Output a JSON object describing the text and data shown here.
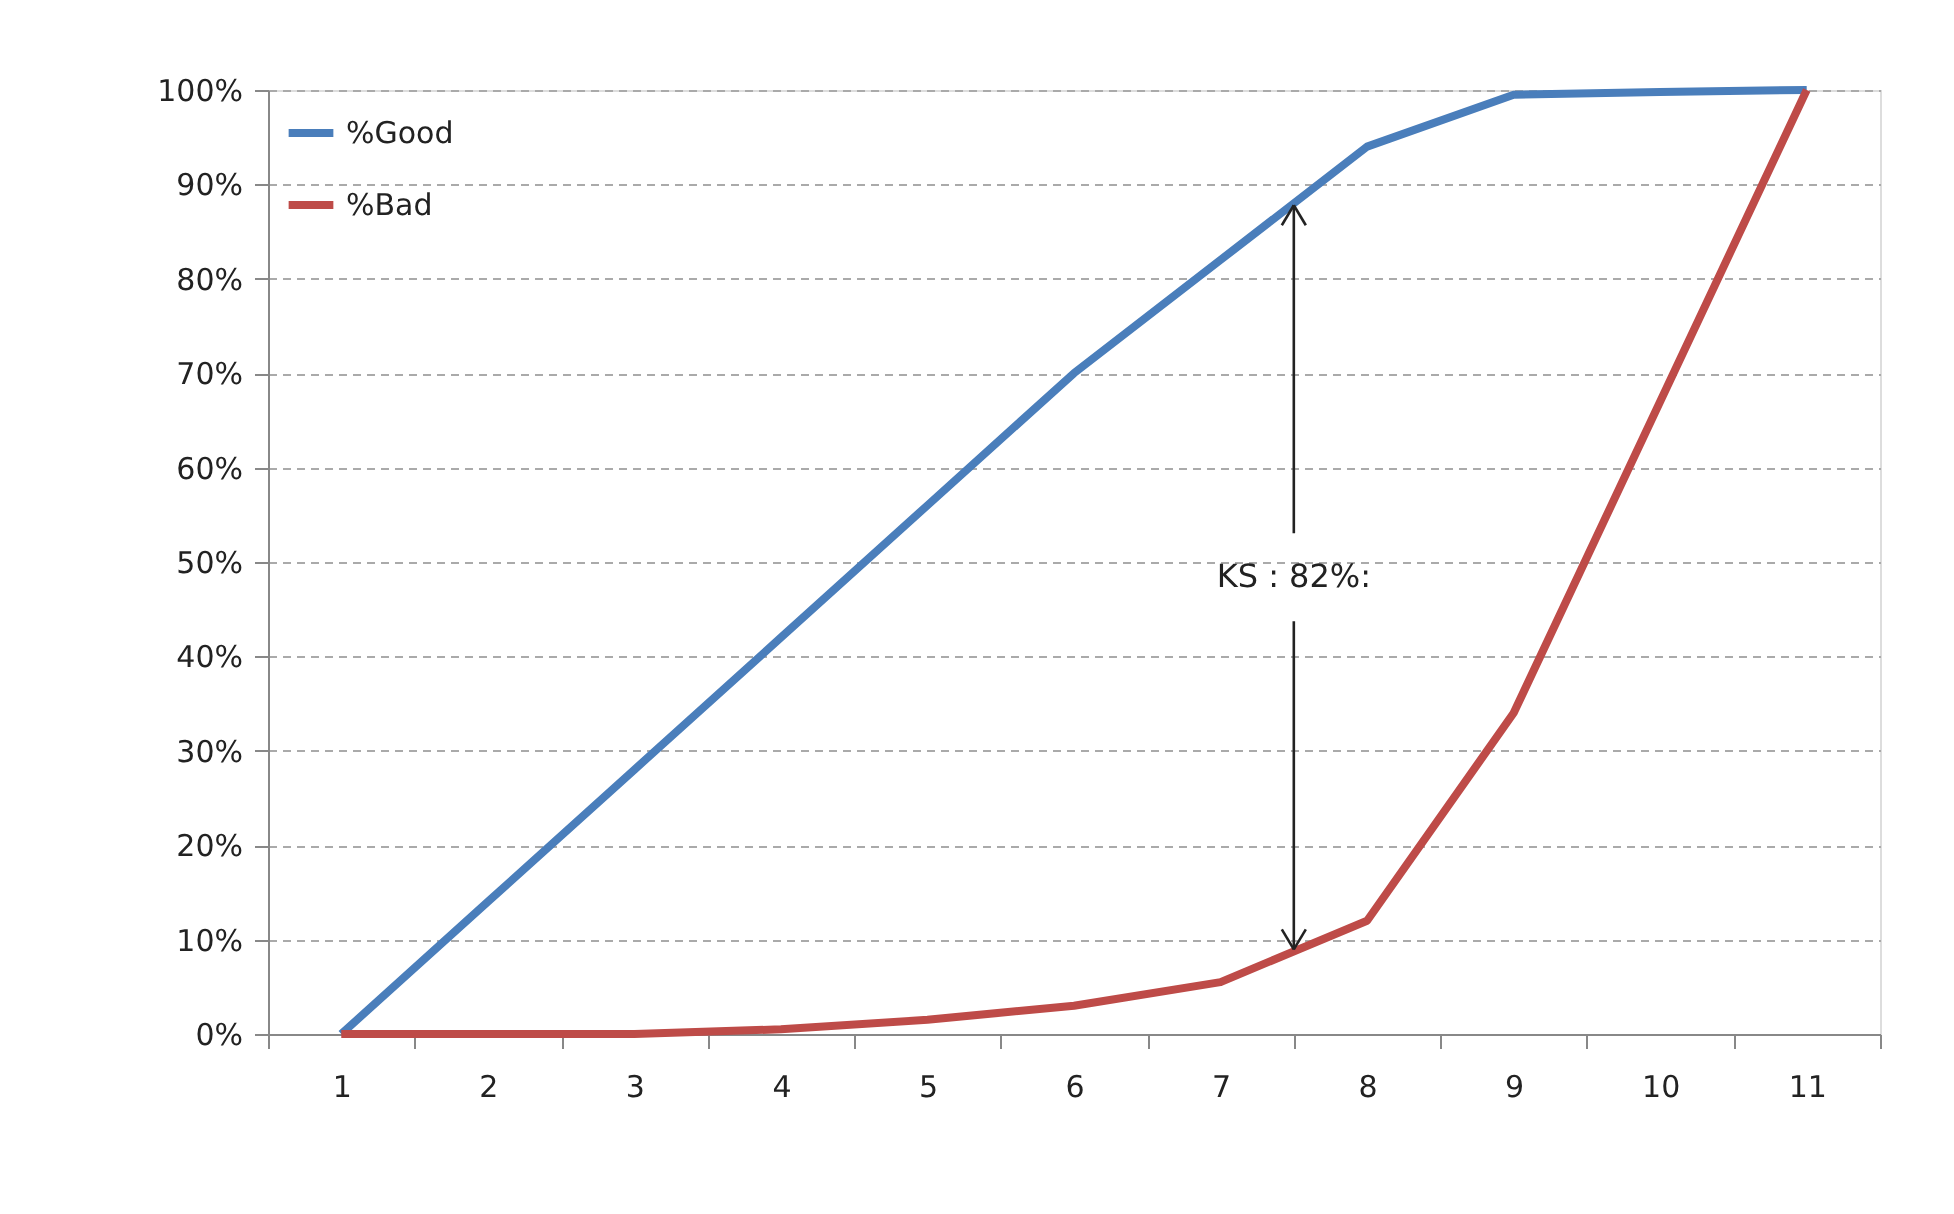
{
  "chart_data": {
    "type": "line",
    "categories": [
      "1",
      "2",
      "3",
      "4",
      "5",
      "6",
      "7",
      "8",
      "9",
      "10",
      "11"
    ],
    "series": [
      {
        "name": "%Good",
        "color": "#4a7ebb",
        "values": [
          0,
          14,
          28,
          42,
          56,
          70,
          82,
          94,
          99.5,
          99.8,
          100
        ]
      },
      {
        "name": "%Bad",
        "color": "#be4b48",
        "values": [
          0,
          0,
          0,
          0.5,
          1.5,
          3,
          5.5,
          12,
          34,
          67,
          100
        ]
      }
    ],
    "ylim": [
      0,
      100
    ],
    "yticks": [
      {
        "value": 0,
        "label": "0%"
      },
      {
        "value": 10,
        "label": "10%"
      },
      {
        "value": 20,
        "label": "20%"
      },
      {
        "value": 30,
        "label": "30%"
      },
      {
        "value": 40,
        "label": "40%"
      },
      {
        "value": 50,
        "label": "50%"
      },
      {
        "value": 60,
        "label": "60%"
      },
      {
        "value": 70,
        "label": "70%"
      },
      {
        "value": 80,
        "label": "80%"
      },
      {
        "value": 90,
        "label": "90%"
      },
      {
        "value": 100,
        "label": "100%"
      }
    ],
    "grid": "y",
    "legend": "top left",
    "line_style": "solid",
    "marker": "none",
    "annotations": [
      {
        "text": "KS : 82%:",
        "y": 88
      }
    ]
  }
}
